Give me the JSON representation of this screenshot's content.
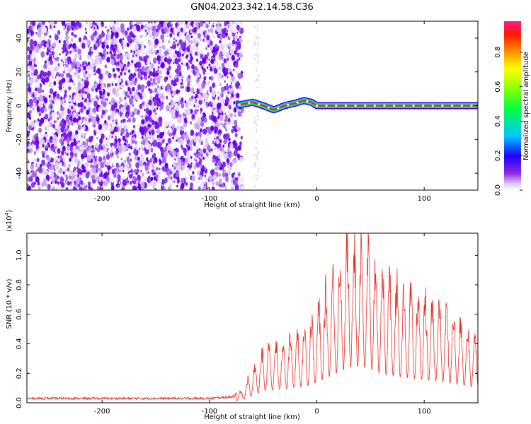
{
  "title": "GN04.2023.342.14.58.C36",
  "charts": [
    {
      "type": "heatmap",
      "xlabel": "Height of straight line (km)",
      "ylabel": "Frequency (Hz)",
      "xlim": [
        -270,
        150
      ],
      "ylim": [
        -50,
        50
      ],
      "xticks": [
        -200,
        -100,
        0,
        100
      ],
      "yticks": [
        40,
        20,
        0,
        -20,
        -40
      ],
      "noise_region_x": [
        -270,
        -72
      ],
      "signal_track": {
        "x": [
          -72,
          -60,
          -50,
          -40,
          -30,
          -20,
          -12,
          -5,
          0,
          10,
          20,
          30,
          40,
          55,
          60,
          70,
          80,
          100,
          120,
          150
        ],
        "y": [
          0.5,
          2,
          0,
          -2.5,
          0,
          1.5,
          3,
          2,
          0,
          0,
          0,
          0,
          0,
          0,
          0,
          0,
          0,
          0,
          0,
          0
        ]
      },
      "colorbar": {
        "label": "Normalized spectral amplitude",
        "ticks": [
          "0.0",
          "0.2",
          "0.4",
          "0.6",
          "0.8"
        ]
      }
    },
    {
      "type": "line",
      "xlabel": "Height of straight line (km)",
      "ylabel": "SNR (10 * v/v)",
      "scale_label": "(x10",
      "scale_exp": "4",
      "scale_close": ")",
      "xlim": [
        -270,
        150
      ],
      "ylim": [
        0,
        1.15
      ],
      "xticks": [
        -200,
        -100,
        0,
        100
      ],
      "yticks": [
        "0.0",
        "0.2",
        "0.4",
        "0.6",
        "0.8",
        "1.0"
      ],
      "envelope": {
        "x": [
          -270,
          -200,
          -100,
          -80,
          -70,
          -60,
          -50,
          -40,
          -30,
          -20,
          -10,
          0,
          10,
          20,
          30,
          40,
          50,
          60,
          80,
          100,
          120,
          140,
          150
        ],
        "y": [
          0.03,
          0.03,
          0.03,
          0.04,
          0.07,
          0.2,
          0.32,
          0.35,
          0.38,
          0.42,
          0.45,
          0.55,
          0.68,
          0.82,
          0.95,
          0.98,
          0.9,
          0.78,
          0.68,
          0.62,
          0.55,
          0.45,
          0.4
        ]
      },
      "line_color": "#e8312b"
    }
  ]
}
